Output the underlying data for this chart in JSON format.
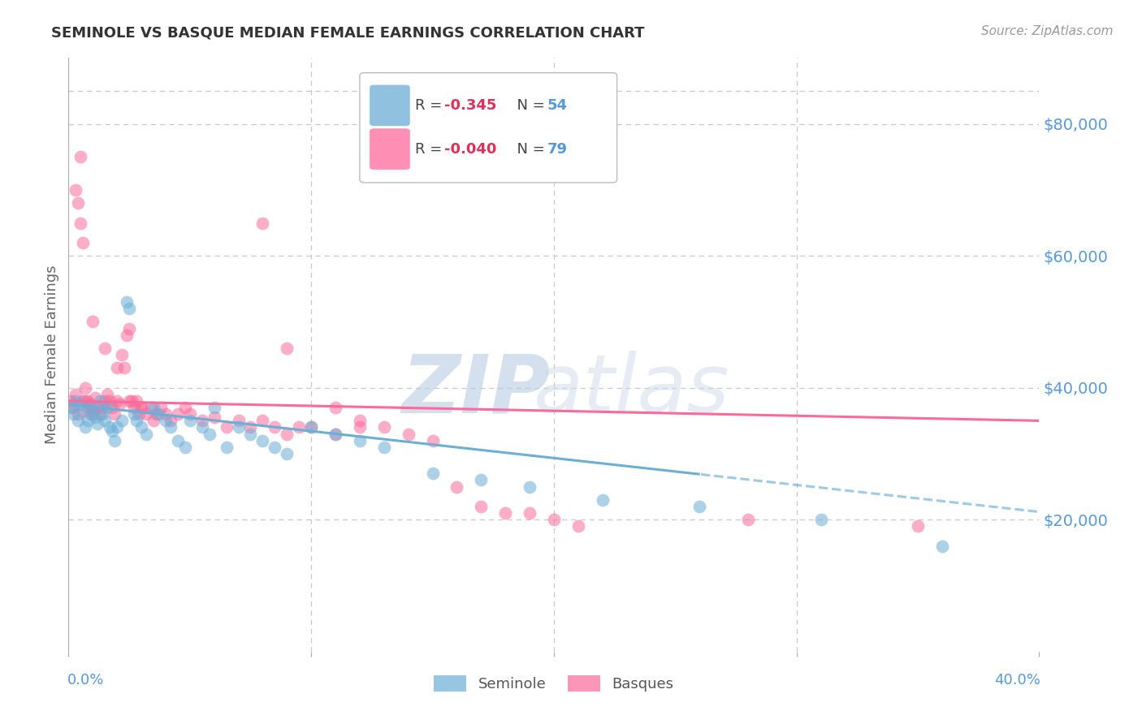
{
  "title": "SEMINOLE VS BASQUE MEDIAN FEMALE EARNINGS CORRELATION CHART",
  "source": "Source: ZipAtlas.com",
  "ylabel": "Median Female Earnings",
  "xlim": [
    0.0,
    0.4
  ],
  "ylim": [
    0,
    90000
  ],
  "seminole_color": "#6baed6",
  "basque_color": "#fb6a9a",
  "background_color": "#ffffff",
  "grid_color": "#c8c8c8",
  "seminole_R": -0.345,
  "seminole_N": 54,
  "basque_R": -0.04,
  "basque_N": 79,
  "seminole_x": [
    0.001,
    0.002,
    0.003,
    0.004,
    0.005,
    0.006,
    0.007,
    0.008,
    0.009,
    0.01,
    0.011,
    0.012,
    0.013,
    0.014,
    0.015,
    0.016,
    0.017,
    0.018,
    0.019,
    0.02,
    0.022,
    0.024,
    0.025,
    0.027,
    0.028,
    0.03,
    0.032,
    0.035,
    0.037,
    0.04,
    0.042,
    0.045,
    0.048,
    0.05,
    0.055,
    0.058,
    0.06,
    0.065,
    0.07,
    0.075,
    0.08,
    0.085,
    0.09,
    0.1,
    0.11,
    0.12,
    0.13,
    0.15,
    0.17,
    0.19,
    0.22,
    0.26,
    0.31,
    0.36
  ],
  "seminole_y": [
    37000,
    36000,
    38000,
    35000,
    37500,
    36500,
    34000,
    35000,
    37000,
    36000,
    35500,
    34500,
    38000,
    36000,
    35000,
    37000,
    34000,
    33500,
    32000,
    34000,
    35000,
    53000,
    52000,
    36000,
    35000,
    34000,
    33000,
    37000,
    36000,
    35000,
    34000,
    32000,
    31000,
    35000,
    34000,
    33000,
    37000,
    31000,
    34000,
    33000,
    32000,
    31000,
    30000,
    34000,
    33000,
    32000,
    31000,
    27000,
    26000,
    25000,
    23000,
    22000,
    20000,
    16000
  ],
  "basque_x": [
    0.001,
    0.002,
    0.003,
    0.004,
    0.005,
    0.006,
    0.007,
    0.008,
    0.009,
    0.01,
    0.011,
    0.012,
    0.013,
    0.014,
    0.015,
    0.016,
    0.017,
    0.018,
    0.019,
    0.02,
    0.021,
    0.022,
    0.023,
    0.024,
    0.025,
    0.026,
    0.027,
    0.028,
    0.029,
    0.03,
    0.032,
    0.034,
    0.036,
    0.038,
    0.04,
    0.042,
    0.045,
    0.048,
    0.05,
    0.055,
    0.06,
    0.065,
    0.07,
    0.075,
    0.08,
    0.085,
    0.09,
    0.095,
    0.1,
    0.11,
    0.12,
    0.13,
    0.14,
    0.15,
    0.16,
    0.17,
    0.18,
    0.19,
    0.2,
    0.21,
    0.003,
    0.004,
    0.005,
    0.006,
    0.007,
    0.008,
    0.009,
    0.01,
    0.015,
    0.02,
    0.025,
    0.03,
    0.035,
    0.08,
    0.09,
    0.11,
    0.12,
    0.28,
    0.35
  ],
  "basque_y": [
    38000,
    37000,
    39000,
    36000,
    75000,
    38000,
    40000,
    38000,
    37500,
    36500,
    38500,
    37000,
    36000,
    37000,
    38000,
    39000,
    38000,
    37000,
    36000,
    38000,
    37500,
    45000,
    43000,
    48000,
    49000,
    38000,
    37000,
    38000,
    36000,
    37000,
    36000,
    37000,
    36000,
    37000,
    36000,
    35000,
    36000,
    37000,
    36000,
    35000,
    35500,
    34000,
    35000,
    34000,
    35000,
    34000,
    33000,
    34000,
    34000,
    33000,
    35000,
    34000,
    33000,
    32000,
    25000,
    22000,
    21000,
    21000,
    20000,
    19000,
    70000,
    68000,
    65000,
    62000,
    38000,
    37000,
    36000,
    50000,
    46000,
    43000,
    38000,
    37000,
    35000,
    65000,
    46000,
    37000,
    34000,
    20000,
    19000
  ]
}
